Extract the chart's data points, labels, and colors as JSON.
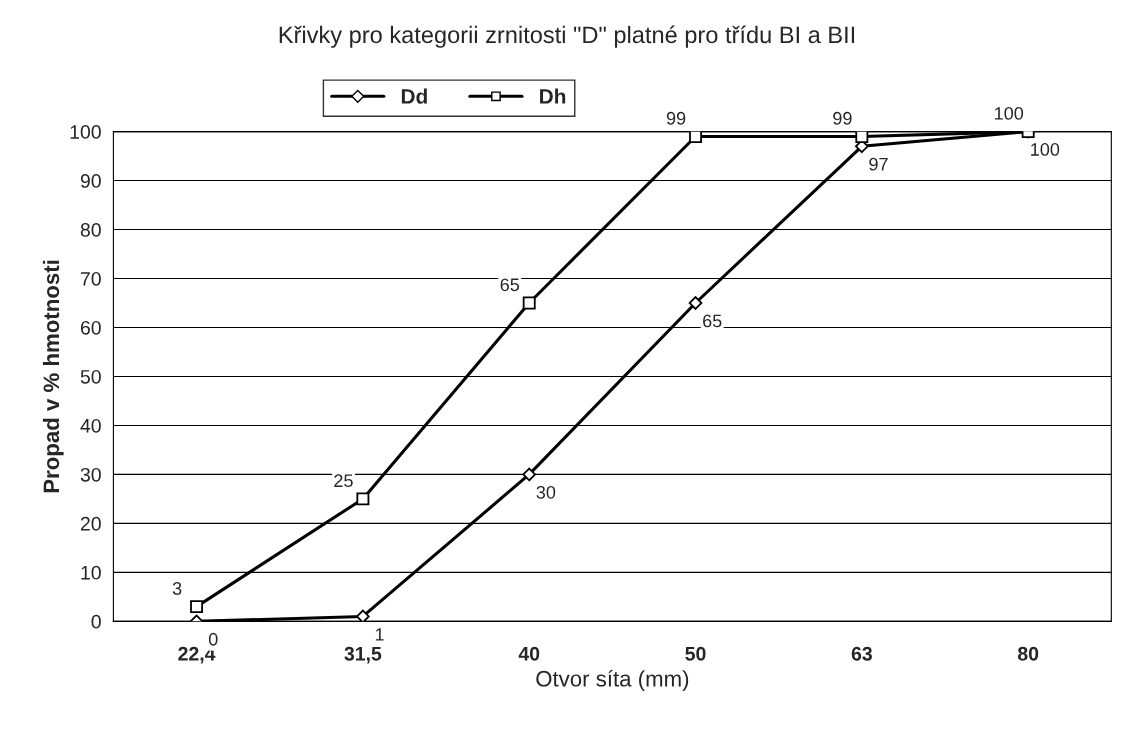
{
  "chart_data": {
    "type": "line",
    "title": "Křivky pro kategorii zrnitosti \"D\" platné pro třídu BI a BII",
    "xlabel": "Otvor síta (mm)",
    "ylabel": "Propad v % hmotnosti",
    "categories": [
      "22,4",
      "31,5",
      "40",
      "50",
      "63",
      "80"
    ],
    "series": [
      {
        "name": "Dd",
        "color": "#000000",
        "marker": "diamond",
        "values": [
          0,
          1,
          30,
          65,
          97,
          100
        ]
      },
      {
        "name": "Dh",
        "color": "#000000",
        "marker": "square",
        "values": [
          3,
          25,
          65,
          99,
          99,
          100
        ]
      }
    ],
    "ylim": [
      0,
      100
    ],
    "yticks": [
      0,
      10,
      20,
      30,
      40,
      50,
      60,
      70,
      80,
      90,
      100
    ],
    "grid": "y",
    "legend": "top left",
    "data_labels": true,
    "line_style": "solid"
  }
}
